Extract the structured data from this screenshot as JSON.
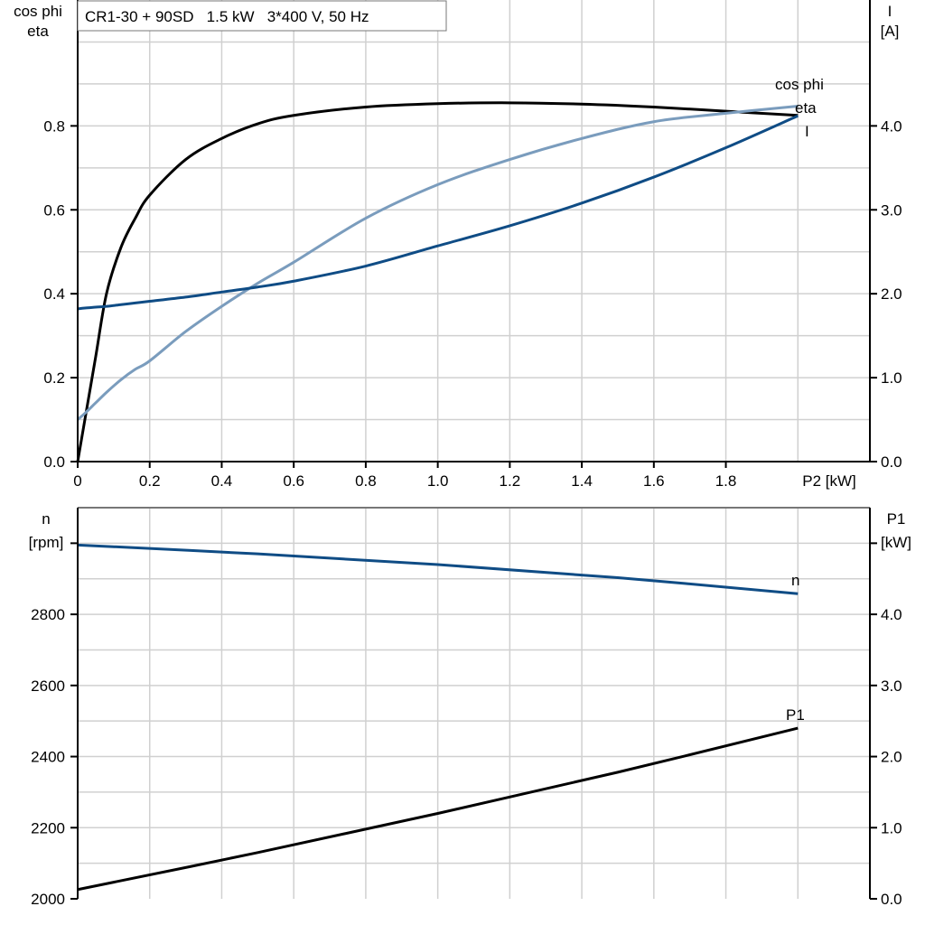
{
  "title": "CR1-30 + 90SD   1.5 kW   3*400 V, 50 Hz",
  "colors": {
    "eta": "#000000",
    "cos_phi": "#7a9cbd",
    "I": "#0f4c85",
    "n": "#0f4c85",
    "P1": "#000000",
    "grid": "#d0d0d0"
  },
  "chart_data": [
    {
      "type": "line",
      "xlabel": "P2 [kW]",
      "ylabel_left": [
        "cos phi",
        "eta"
      ],
      "ylabel_right": [
        "I",
        "[A]"
      ],
      "xlim": [
        0,
        2.2
      ],
      "ylim_left": [
        0,
        1.1
      ],
      "ylim_right": [
        0,
        5.5
      ],
      "grid": true,
      "x_ticks": [
        "0",
        "0.2",
        "0.4",
        "0.6",
        "0.8",
        "1.0",
        "1.2",
        "1.4",
        "1.6",
        "1.8"
      ],
      "y_ticks_left": [
        "0.0",
        "0.2",
        "0.4",
        "0.6",
        "0.8"
      ],
      "y_ticks_right": [
        "0.0",
        "1.0",
        "2.0",
        "3.0",
        "4.0"
      ],
      "x": [
        0,
        0.02,
        0.05,
        0.08,
        0.12,
        0.16,
        0.2,
        0.3,
        0.4,
        0.5,
        0.6,
        0.8,
        1.0,
        1.2,
        1.4,
        1.6,
        1.8,
        2.0
      ],
      "series": [
        {
          "name": "eta",
          "axis": "left",
          "values": [
            0,
            0.1,
            0.25,
            0.4,
            0.51,
            0.58,
            0.635,
            0.72,
            0.77,
            0.805,
            0.825,
            0.845,
            0.853,
            0.855,
            0.852,
            0.845,
            0.835,
            0.825
          ]
        },
        {
          "name": "cos phi",
          "axis": "left",
          "values": [
            0.1,
            0.115,
            0.14,
            0.165,
            0.195,
            0.22,
            0.24,
            0.31,
            0.37,
            0.425,
            0.475,
            0.58,
            0.66,
            0.72,
            0.77,
            0.81,
            0.83,
            0.847
          ]
        },
        {
          "name": "I",
          "axis": "right",
          "values": [
            1.82,
            1.83,
            1.84,
            1.85,
            1.87,
            1.89,
            1.91,
            1.96,
            2.02,
            2.08,
            2.15,
            2.33,
            2.57,
            2.81,
            3.08,
            3.39,
            3.74,
            4.12
          ]
        }
      ]
    },
    {
      "type": "line",
      "ylabel_left": [
        "n",
        "[rpm]"
      ],
      "ylabel_right": [
        "P1",
        "[kW]"
      ],
      "xlim": [
        0,
        2.2
      ],
      "ylim_left": [
        2000,
        3100
      ],
      "ylim_right": [
        0,
        5.5
      ],
      "grid": true,
      "y_ticks_left": [
        "2000",
        "2200",
        "2400",
        "2600",
        "2800"
      ],
      "y_ticks_right": [
        "0.0",
        "1.0",
        "2.0",
        "3.0",
        "4.0"
      ],
      "x": [
        0,
        0.5,
        1.0,
        1.5,
        2.0
      ],
      "series": [
        {
          "name": "n",
          "axis": "left",
          "values": [
            2995,
            2970,
            2940,
            2903,
            2858
          ]
        },
        {
          "name": "P1",
          "axis": "right",
          "values": [
            0.13,
            0.65,
            1.2,
            1.78,
            2.4
          ]
        }
      ]
    }
  ]
}
